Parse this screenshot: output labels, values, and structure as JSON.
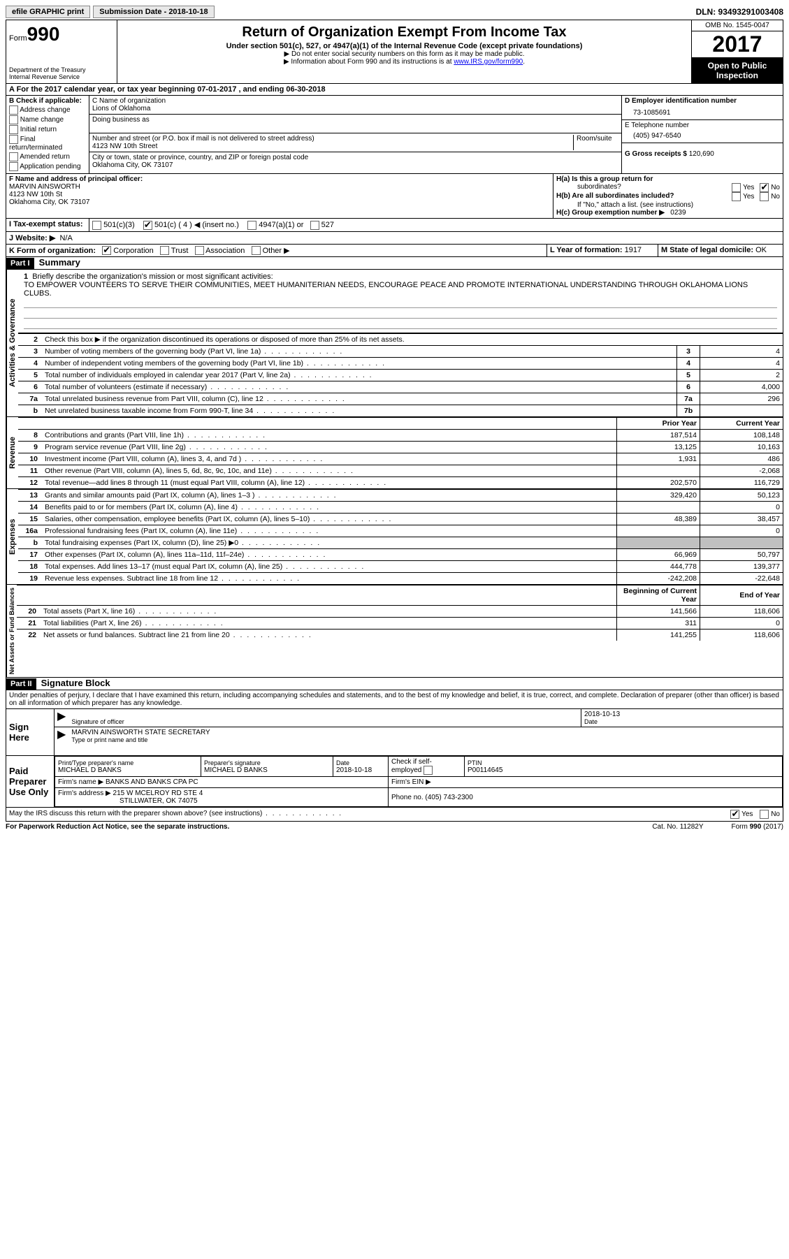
{
  "topbar": {
    "efile": "efile GRAPHIC print",
    "submission_label": "Submission Date - 2018-10-18",
    "dln": "DLN: 93493291003408"
  },
  "header": {
    "form_label": "Form",
    "form_num": "990",
    "dept1": "Department of the Treasury",
    "dept2": "Internal Revenue Service",
    "title": "Return of Organization Exempt From Income Tax",
    "subtitle": "Under section 501(c), 527, or 4947(a)(1) of the Internal Revenue Code (except private foundations)",
    "note1": "▶ Do not enter social security numbers on this form as it may be made public.",
    "note2_pre": "▶ Information about Form 990 and its instructions is at ",
    "note2_link": "www.IRS.gov/form990",
    "omb": "OMB No. 1545-0047",
    "year": "2017",
    "inspect1": "Open to Public",
    "inspect2": "Inspection"
  },
  "sectionA": "A  For the 2017 calendar year, or tax year beginning 07-01-2017   , and ending 06-30-2018",
  "sectionB": {
    "title": "B Check if applicable:",
    "opts": [
      "Address change",
      "Name change",
      "Initial return",
      "Final return/terminated",
      "Amended return",
      "Application pending"
    ]
  },
  "sectionC": {
    "name_label": "C Name of organization",
    "name": "Lions of Oklahoma",
    "dba_label": "Doing business as",
    "addr_label": "Number and street (or P.O. box if mail is not delivered to street address)",
    "room_label": "Room/suite",
    "addr": "4123 NW 10th Street",
    "city_label": "City or town, state or province, country, and ZIP or foreign postal code",
    "city": "Oklahoma City, OK  73107"
  },
  "sectionD": {
    "label": "D Employer identification number",
    "value": "73-1085691",
    "phone_label": "E Telephone number",
    "phone": "(405) 947-6540",
    "gross_label": "G Gross receipts $",
    "gross": "120,690"
  },
  "sectionF": {
    "label": "F Name and address of principal officer:",
    "name": "MARVIN AINSWORTH",
    "addr": "4123 NW 10th St",
    "city": "Oklahoma City, OK  73107"
  },
  "sectionH": {
    "ha": "H(a)  Is this a group return for",
    "ha2": "subordinates?",
    "hb": "H(b)  Are all subordinates included?",
    "hb_note": "If \"No,\" attach a list. (see instructions)",
    "hc": "H(c)  Group exemption number ▶",
    "hc_val": "0239",
    "yes": "Yes",
    "no": "No"
  },
  "sectionI": {
    "label": "I  Tax-exempt status:",
    "o1": "501(c)(3)",
    "o2": "501(c) ( 4 ) ◀ (insert no.)",
    "o3": "4947(a)(1) or",
    "o4": "527"
  },
  "sectionJ": {
    "label": "J  Website: ▶",
    "value": "N/A"
  },
  "sectionK": {
    "label": "K Form of organization:",
    "o1": "Corporation",
    "o2": "Trust",
    "o3": "Association",
    "o4": "Other ▶"
  },
  "sectionL": {
    "label": "L Year of formation:",
    "value": "1917"
  },
  "sectionM": {
    "label": "M State of legal domicile:",
    "value": "OK"
  },
  "part1": {
    "label": "Part I",
    "title": "Summary",
    "vert1": "Activities & Governance",
    "vert2": "Revenue",
    "vert3": "Expenses",
    "vert4": "Net Assets or Fund Balances",
    "l1": "Briefly describe the organization's mission or most significant activities:",
    "mission": "TO EMPOWER VOUNTEERS TO SERVE THEIR COMMUNITIES, MEET HUMANITERIAN NEEDS, ENCOURAGE PEACE AND PROMOTE INTERNATIONAL UNDERSTANDING THROUGH OKLAHOMA LIONS CLUBS.",
    "l2": "Check this box ▶      if the organization discontinued its operations or disposed of more than 25% of its net assets.",
    "rows_gov": [
      {
        "n": "3",
        "txt": "Number of voting members of the governing body (Part VI, line 1a)",
        "box": "3",
        "val": "4"
      },
      {
        "n": "4",
        "txt": "Number of independent voting members of the governing body (Part VI, line 1b)",
        "box": "4",
        "val": "4"
      },
      {
        "n": "5",
        "txt": "Total number of individuals employed in calendar year 2017 (Part V, line 2a)",
        "box": "5",
        "val": "2"
      },
      {
        "n": "6",
        "txt": "Total number of volunteers (estimate if necessary)",
        "box": "6",
        "val": "4,000"
      },
      {
        "n": "7a",
        "txt": "Total unrelated business revenue from Part VIII, column (C), line 12",
        "box": "7a",
        "val": "296"
      },
      {
        "n": "b",
        "txt": "Net unrelated business taxable income from Form 990-T, line 34",
        "box": "7b",
        "val": ""
      }
    ],
    "hdr_prior": "Prior Year",
    "hdr_curr": "Current Year",
    "rows_rev": [
      {
        "n": "8",
        "txt": "Contributions and grants (Part VIII, line 1h)",
        "p": "187,514",
        "c": "108,148"
      },
      {
        "n": "9",
        "txt": "Program service revenue (Part VIII, line 2g)",
        "p": "13,125",
        "c": "10,163"
      },
      {
        "n": "10",
        "txt": "Investment income (Part VIII, column (A), lines 3, 4, and 7d )",
        "p": "1,931",
        "c": "486"
      },
      {
        "n": "11",
        "txt": "Other revenue (Part VIII, column (A), lines 5, 6d, 8c, 9c, 10c, and 11e)",
        "p": "",
        "c": "-2,068"
      },
      {
        "n": "12",
        "txt": "Total revenue—add lines 8 through 11 (must equal Part VIII, column (A), line 12)",
        "p": "202,570",
        "c": "116,729"
      }
    ],
    "rows_exp": [
      {
        "n": "13",
        "txt": "Grants and similar amounts paid (Part IX, column (A), lines 1–3 )",
        "p": "329,420",
        "c": "50,123"
      },
      {
        "n": "14",
        "txt": "Benefits paid to or for members (Part IX, column (A), line 4)",
        "p": "",
        "c": "0"
      },
      {
        "n": "15",
        "txt": "Salaries, other compensation, employee benefits (Part IX, column (A), lines 5–10)",
        "p": "48,389",
        "c": "38,457"
      },
      {
        "n": "16a",
        "txt": "Professional fundraising fees (Part IX, column (A), line 11e)",
        "p": "",
        "c": "0"
      },
      {
        "n": "b",
        "txt": "Total fundraising expenses (Part IX, column (D), line 25) ▶0",
        "p": "SHADE",
        "c": "SHADE"
      },
      {
        "n": "17",
        "txt": "Other expenses (Part IX, column (A), lines 11a–11d, 11f–24e)",
        "p": "66,969",
        "c": "50,797"
      },
      {
        "n": "18",
        "txt": "Total expenses. Add lines 13–17 (must equal Part IX, column (A), line 25)",
        "p": "444,778",
        "c": "139,377"
      },
      {
        "n": "19",
        "txt": "Revenue less expenses. Subtract line 18 from line 12",
        "p": "-242,208",
        "c": "-22,648"
      }
    ],
    "hdr_beg": "Beginning of Current Year",
    "hdr_end": "End of Year",
    "rows_net": [
      {
        "n": "20",
        "txt": "Total assets (Part X, line 16)",
        "p": "141,566",
        "c": "118,606"
      },
      {
        "n": "21",
        "txt": "Total liabilities (Part X, line 26)",
        "p": "311",
        "c": "0"
      },
      {
        "n": "22",
        "txt": "Net assets or fund balances. Subtract line 21 from line 20",
        "p": "141,255",
        "c": "118,606"
      }
    ]
  },
  "part2": {
    "label": "Part II",
    "title": "Signature Block",
    "decl": "Under penalties of perjury, I declare that I have examined this return, including accompanying schedules and statements, and to the best of my knowledge and belief, it is true, correct, and complete. Declaration of preparer (other than officer) is based on all information of which preparer has any knowledge.",
    "sign_here": "Sign Here",
    "sig_officer": "Signature of officer",
    "date": "Date",
    "date_val": "2018-10-13",
    "name_title": "MARVIN AINSWORTH STATE SECRETARY",
    "type_name": "Type or print name and title",
    "paid": "Paid Preparer Use Only",
    "prep_name_l": "Print/Type preparer's name",
    "prep_name": "MICHAEL D BANKS",
    "prep_sig_l": "Preparer's signature",
    "prep_sig": "MICHAEL D BANKS",
    "prep_date_l": "Date",
    "prep_date": "2018-10-18",
    "check_if": "Check      if self-employed",
    "ptin_l": "PTIN",
    "ptin": "P00114645",
    "firm_name_l": "Firm's name     ▶",
    "firm_name": "BANKS AND BANKS CPA PC",
    "firm_ein_l": "Firm's EIN ▶",
    "firm_addr_l": "Firm's address ▶",
    "firm_addr": "215 W MCELROY RD STE 4",
    "firm_city": "STILLWATER, OK  74075",
    "firm_phone_l": "Phone no.",
    "firm_phone": "(405) 743-2300",
    "discuss": "May the IRS discuss this return with the preparer shown above? (see instructions)",
    "yes": "Yes",
    "no": "No"
  },
  "footer": {
    "left": "For Paperwork Reduction Act Notice, see the separate instructions.",
    "mid": "Cat. No. 11282Y",
    "right": "Form 990 (2017)"
  }
}
